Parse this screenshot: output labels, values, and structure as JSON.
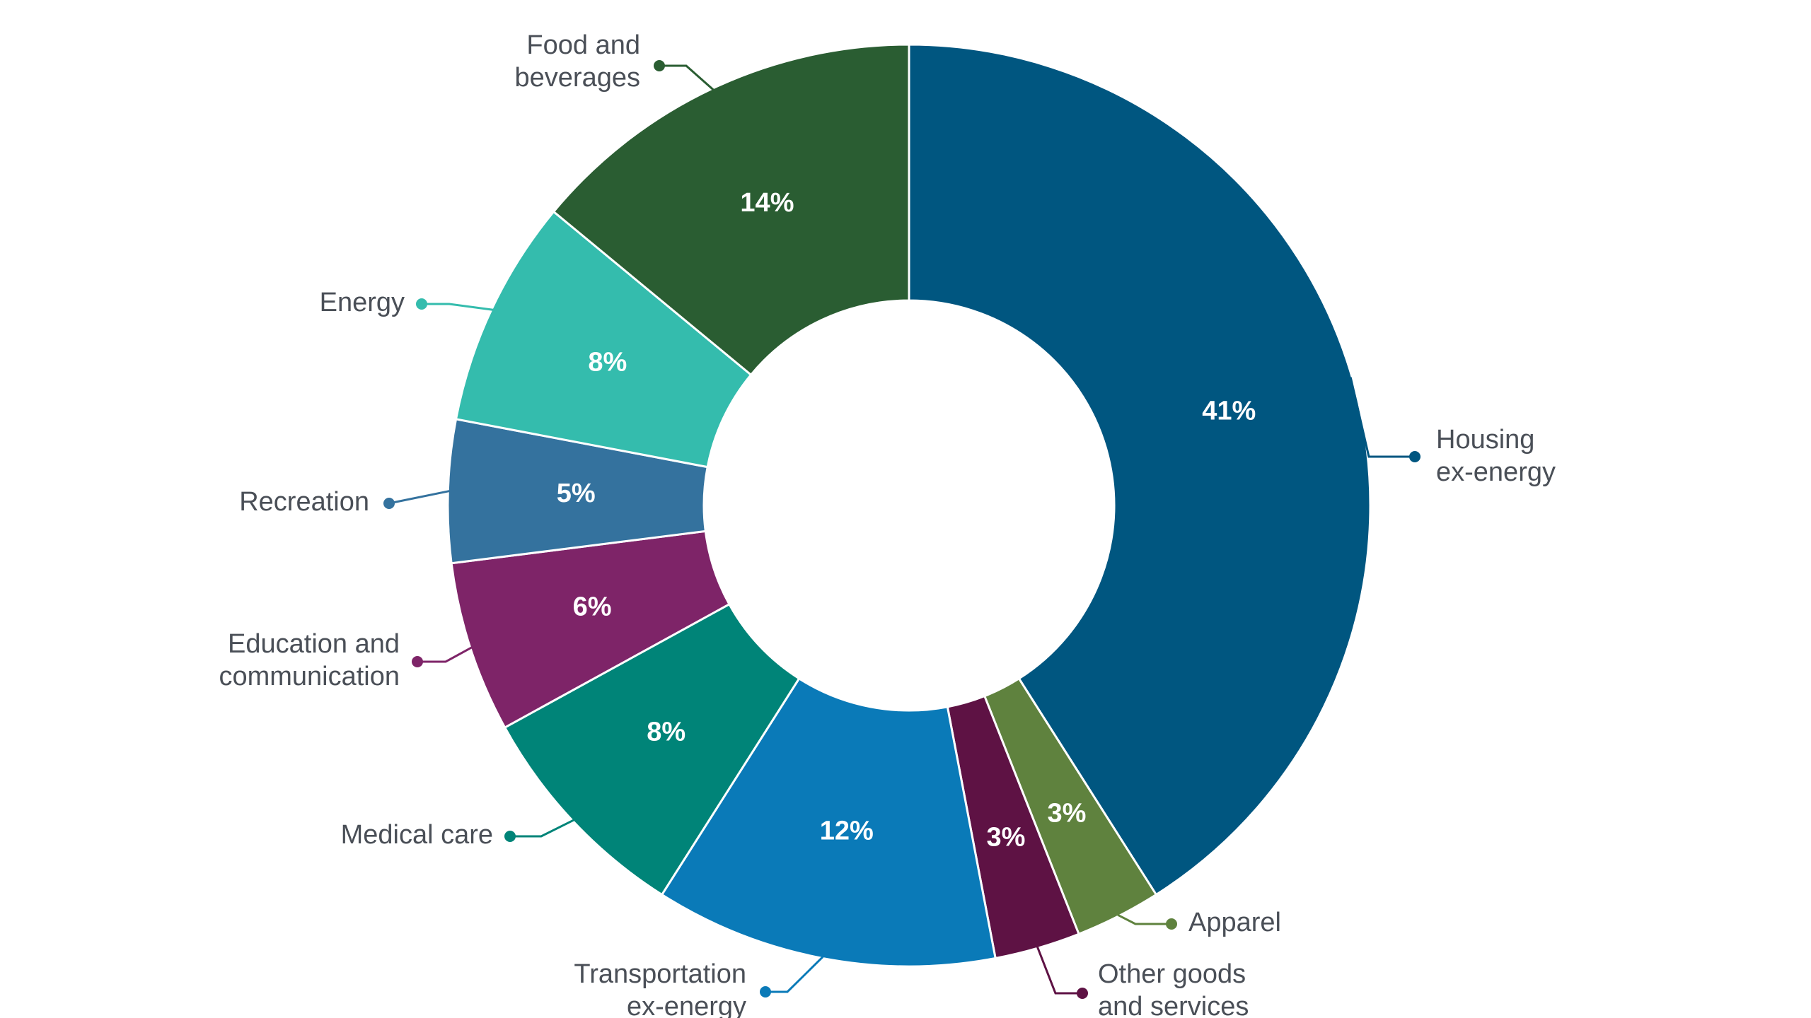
{
  "chart_data": {
    "type": "pie",
    "variant": "donut",
    "title": "",
    "legend": "none",
    "slices": [
      {
        "label": "Housing ex-energy",
        "lines": [
          "Housing",
          "ex-energy"
        ],
        "value": 41,
        "display": "41%",
        "color": "#005680"
      },
      {
        "label": "Apparel",
        "lines": [
          "Apparel"
        ],
        "value": 3,
        "display": "3%",
        "color": "#5f823e"
      },
      {
        "label": "Other goods and services",
        "lines": [
          "Other goods",
          "and services"
        ],
        "value": 3,
        "display": "3%",
        "color": "#5e1244"
      },
      {
        "label": "Transportation ex-energy",
        "lines": [
          "Transportation",
          "ex-energy"
        ],
        "value": 12,
        "display": "12%",
        "color": "#0a7ab8"
      },
      {
        "label": "Medical care",
        "lines": [
          "Medical care"
        ],
        "value": 8,
        "display": "8%",
        "color": "#008478"
      },
      {
        "label": "Education and communication",
        "lines": [
          "Education and",
          "communication"
        ],
        "value": 6,
        "display": "6%",
        "color": "#7e2468"
      },
      {
        "label": "Recreation",
        "lines": [
          "Recreation"
        ],
        "value": 5,
        "display": "5%",
        "color": "#34729e"
      },
      {
        "label": "Energy",
        "lines": [
          "Energy"
        ],
        "value": 8,
        "display": "8%",
        "color": "#34bcad"
      },
      {
        "label": "Food and beverages",
        "lines": [
          "Food and",
          "beverages"
        ],
        "value": 14,
        "display": "14%",
        "color": "#2a5d32"
      }
    ]
  }
}
